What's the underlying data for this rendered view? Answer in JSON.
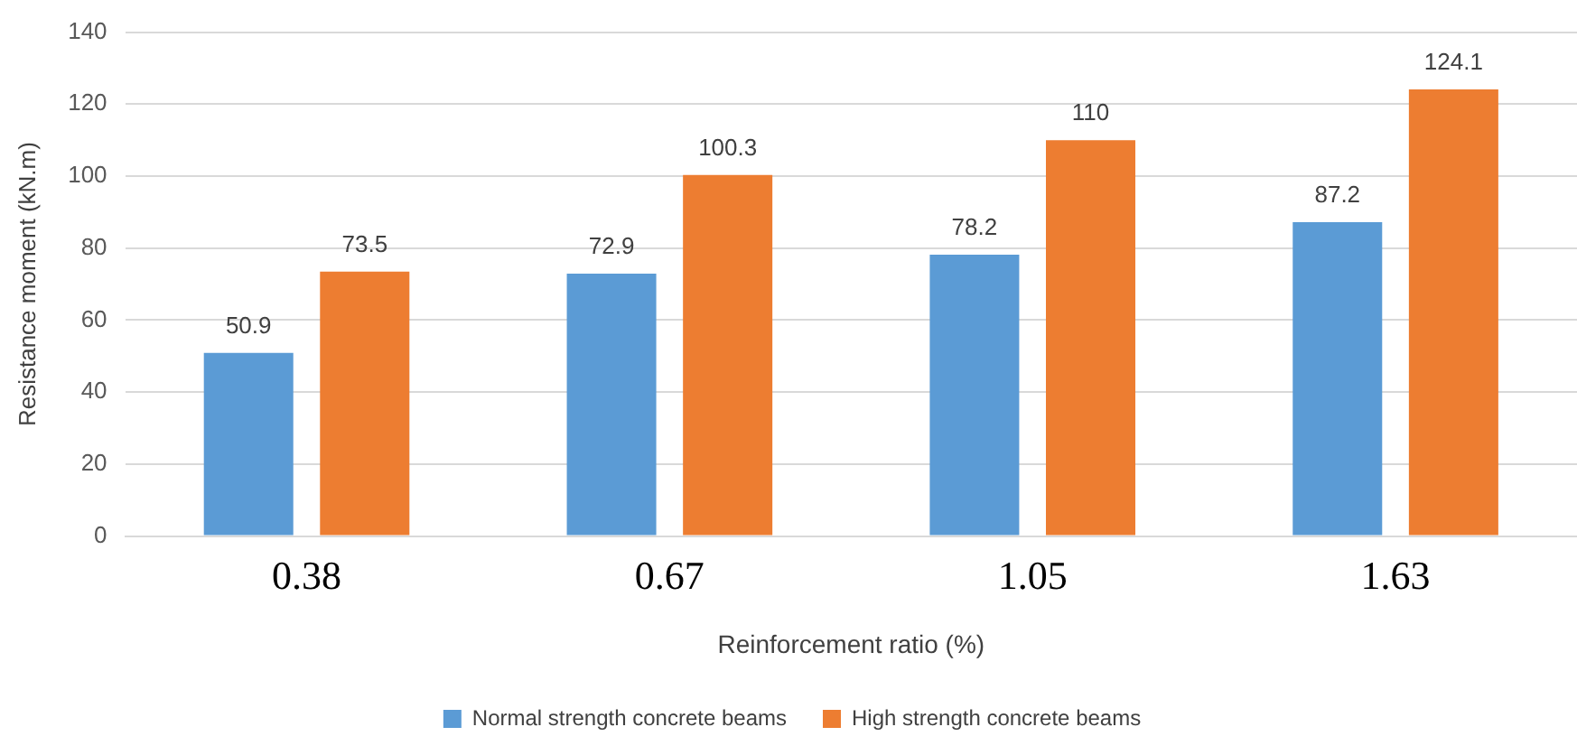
{
  "chart_data": {
    "type": "bar",
    "xlabel": "Reinforcement ratio (%)",
    "ylabel": "Resistance moment (kN.m)",
    "categories": [
      "0.38",
      "0.67",
      "1.05",
      "1.63"
    ],
    "series": [
      {
        "name": "Normal strength concrete beams",
        "color": "#5b9bd5",
        "values": [
          50.9,
          72.9,
          78.2,
          87.2
        ]
      },
      {
        "name": "High strength concrete beams",
        "color": "#ed7d31",
        "values": [
          73.5,
          100.3,
          110,
          124.1
        ]
      }
    ],
    "ylim": [
      0,
      140
    ],
    "yticks": [
      0,
      20,
      40,
      60,
      80,
      100,
      120,
      140
    ],
    "grid": "y",
    "legend": "bottom",
    "data_labels": true
  }
}
